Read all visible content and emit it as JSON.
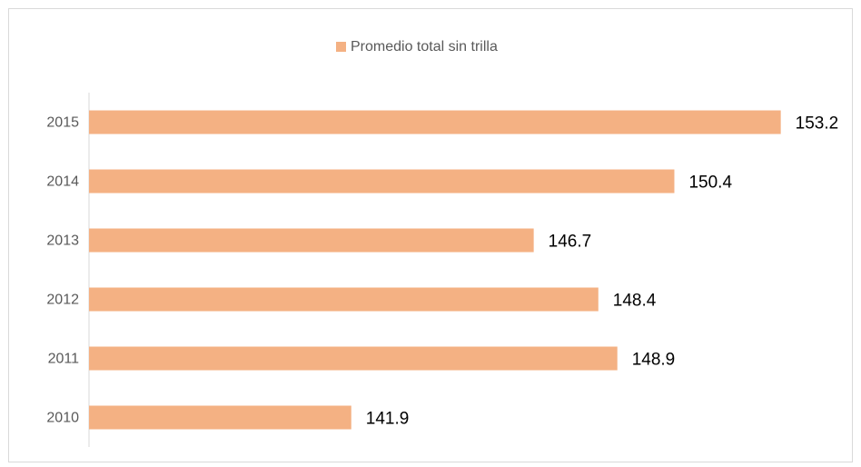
{
  "chart_data": {
    "type": "bar",
    "orientation": "horizontal",
    "categories": [
      "2010",
      "2011",
      "2012",
      "2013",
      "2014",
      "2015"
    ],
    "series": [
      {
        "name": "Promedio total sin trilla",
        "color": "#f4b183",
        "values": [
          141.9,
          148.9,
          148.4,
          146.7,
          150.4,
          153.2
        ]
      }
    ],
    "xlim": [
      135,
      155
    ],
    "legend": "top"
  }
}
